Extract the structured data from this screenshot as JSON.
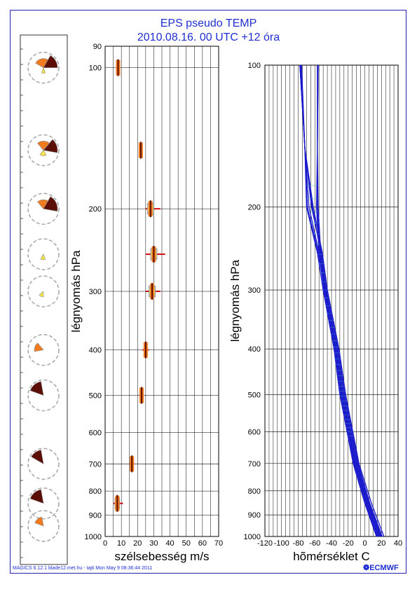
{
  "title": "EPS pseudo TEMP",
  "subtitle": "2010.08.16. 00 UTC +12 óra",
  "footer": "MAGICS 6.12.1 blade12.met.hu - tajti Mon May  9 08:36:44 2011",
  "logo": "ECMWF",
  "colors": {
    "title": "#1f2fd0",
    "line": "#1a1acc",
    "dark": "#5a0e06",
    "orange": "#f07a1e",
    "yellow": "#f6e44a",
    "median": "#d01010"
  },
  "chart_data": [
    {
      "type": "box",
      "ylabel": "légnyomás hPa",
      "xlabel": "szélsebesség m/s",
      "xlim": [
        0,
        70
      ],
      "ylim": [
        1000,
        90
      ],
      "yscale": "log",
      "yticks": [
        90,
        100,
        200,
        300,
        400,
        500,
        600,
        700,
        800,
        900,
        1000
      ],
      "xticks": [
        0,
        10,
        20,
        30,
        40,
        50,
        60,
        70
      ],
      "boxes": [
        {
          "p": 100,
          "min": 7,
          "q1": 7.5,
          "med": 8,
          "q3": 8.5,
          "max": 9
        },
        {
          "p": 150,
          "min": 21,
          "q1": 21.5,
          "med": 22,
          "q3": 22.5,
          "max": 23
        },
        {
          "p": 200,
          "min": 25,
          "q1": 26,
          "med": 28,
          "q3": 30,
          "max": 34
        },
        {
          "p": 250,
          "min": 25,
          "q1": 28,
          "med": 30,
          "q3": 32,
          "max": 37
        },
        {
          "p": 300,
          "min": 25,
          "q1": 27,
          "med": 29,
          "q3": 31,
          "max": 34
        },
        {
          "p": 400,
          "min": 23,
          "q1": 24,
          "med": 25,
          "q3": 26,
          "max": 27
        },
        {
          "p": 500,
          "min": 21,
          "q1": 21.5,
          "med": 22.5,
          "q3": 23.5,
          "max": 24
        },
        {
          "p": 700,
          "min": 15,
          "q1": 16,
          "med": 16.5,
          "q3": 17.5,
          "max": 18
        },
        {
          "p": 850,
          "min": 5,
          "q1": 6,
          "med": 7.5,
          "q3": 9,
          "max": 11
        }
      ]
    },
    {
      "type": "line",
      "ylabel": "légnyomás hPa",
      "xlabel": "hõmérséklet C",
      "xlim": [
        -120,
        40
      ],
      "ylim": [
        1000,
        100
      ],
      "yscale": "log",
      "yticks": [
        100,
        200,
        300,
        400,
        500,
        600,
        700,
        800,
        900,
        1000
      ],
      "xticks": [
        -120,
        -100,
        -80,
        -60,
        -40,
        -20,
        0,
        20,
        40
      ],
      "pressure": [
        100,
        150,
        200,
        250,
        300,
        400,
        500,
        700,
        850,
        1000
      ],
      "series_values": [
        [
          -78,
          -72,
          -63,
          -53,
          -47,
          -34,
          -26,
          -10,
          5,
          19
        ],
        [
          -77,
          -72,
          -67,
          -55,
          -49,
          -35,
          -28,
          -12,
          3,
          17
        ],
        [
          -78,
          -72,
          -69,
          -56,
          -48,
          -36,
          -29,
          -13,
          1,
          15
        ],
        [
          -76,
          -72,
          -64,
          -52,
          -46,
          -32,
          -24,
          -8,
          6,
          21
        ],
        [
          -77,
          -72,
          -70,
          -57,
          -50,
          -37,
          -30,
          -14,
          0,
          14
        ],
        [
          -78,
          -72,
          -62,
          -51,
          -45,
          -31,
          -23,
          -7,
          8,
          23
        ],
        [
          -56,
          -57,
          -57,
          -54,
          -48,
          -35,
          -27,
          -11,
          4,
          18
        ],
        [
          -57,
          -57,
          -56,
          -53,
          -47,
          -33,
          -25,
          -9,
          6,
          20
        ],
        [
          -56,
          -57,
          -58,
          -55,
          -49,
          -36,
          -28,
          -12,
          2,
          16
        ]
      ]
    }
  ],
  "roses": [
    {
      "p": 100,
      "dark_start": 30,
      "dark_end": 90,
      "orange_start": 300,
      "orange_end": 30,
      "yellow_start": 160,
      "yellow_end": 200
    },
    {
      "p": 150,
      "dark_start": 40,
      "dark_end": 100,
      "orange_start": 320,
      "orange_end": 40,
      "yellow_start": 150,
      "yellow_end": 220
    },
    {
      "p": 200,
      "dark_start": 30,
      "dark_end": 100,
      "orange_start": 320,
      "orange_end": 30,
      "yellow_start": 0,
      "yellow_end": 0
    },
    {
      "p": 250,
      "dark_start": 0,
      "dark_end": 0,
      "orange_start": 0,
      "orange_end": 0,
      "yellow_start": 160,
      "yellow_end": 210
    },
    {
      "p": 300,
      "dark_start": 0,
      "dark_end": 0,
      "orange_start": 0,
      "orange_end": 0,
      "yellow_start": 180,
      "yellow_end": 230
    },
    {
      "p": 400,
      "dark_start": 0,
      "dark_end": 0,
      "orange_start": 260,
      "orange_end": 320,
      "yellow_start": 0,
      "yellow_end": 0
    },
    {
      "p": 500,
      "dark_start": 290,
      "dark_end": 350,
      "orange_start": 0,
      "orange_end": 0,
      "yellow_start": 0,
      "yellow_end": 0
    },
    {
      "p": 700,
      "dark_start": 300,
      "dark_end": 350,
      "orange_start": 0,
      "orange_end": 0,
      "yellow_start": 0,
      "yellow_end": 0
    },
    {
      "p": 850,
      "dark_start": 290,
      "dark_end": 350,
      "orange_start": 0,
      "orange_end": 0,
      "yellow_start": 0,
      "yellow_end": 0
    },
    {
      "p": 950,
      "dark_start": 0,
      "dark_end": 0,
      "orange_start": 290,
      "orange_end": 350,
      "yellow_start": 0,
      "yellow_end": 0
    }
  ]
}
